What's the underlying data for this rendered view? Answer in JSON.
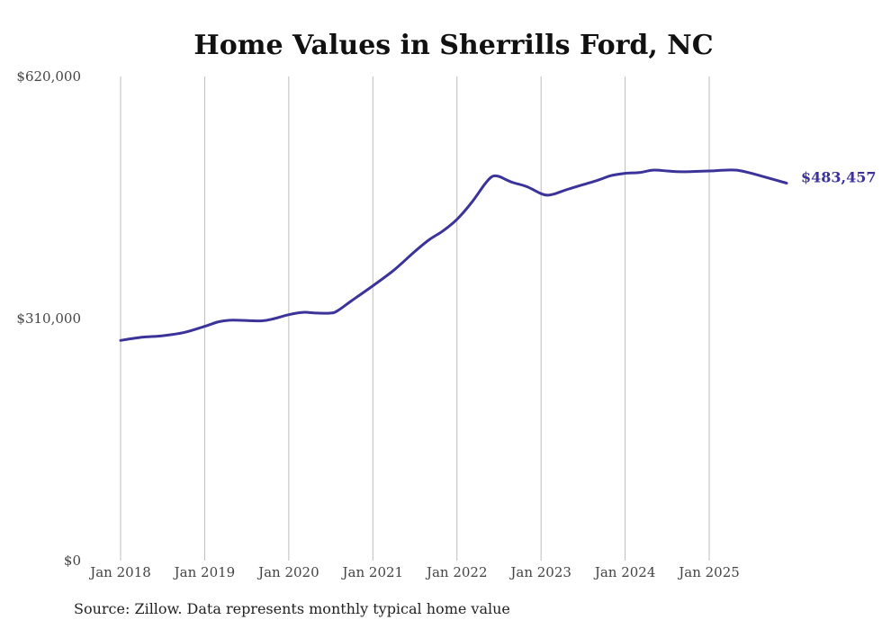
{
  "chart_data": {
    "type": "line",
    "title": "Home Values in Sherrills Ford, NC",
    "source": "Source: Zillow. Data represents monthly typical home value",
    "xlabel": "",
    "ylabel": "",
    "ylim": [
      0,
      620000
    ],
    "y_ticks": [
      0,
      310000,
      620000
    ],
    "y_tick_labels": [
      "$0",
      "$310,000",
      "$620,000"
    ],
    "x_tick_positions": [
      2018.0,
      2019.0,
      2020.0,
      2021.0,
      2022.0,
      2023.0,
      2024.0,
      2025.0
    ],
    "x_tick_labels": [
      "Jan 2018",
      "Jan 2019",
      "Jan 2020",
      "Jan 2021",
      "Jan 2022",
      "Jan 2023",
      "Jan 2024",
      "Jan 2025"
    ],
    "xlim": [
      2018.0,
      2025.92
    ],
    "grid": "vertical",
    "line_color": "#3b3399",
    "end_label": "$483,457",
    "series": [
      {
        "name": "Typical home value",
        "x": [
          2018.0,
          2018.25,
          2018.5,
          2018.75,
          2019.0,
          2019.17,
          2019.33,
          2019.67,
          2019.83,
          2020.0,
          2020.17,
          2020.33,
          2020.5,
          2020.58,
          2020.75,
          2021.0,
          2021.25,
          2021.5,
          2021.67,
          2021.83,
          2022.0,
          2022.17,
          2022.33,
          2022.42,
          2022.5,
          2022.58,
          2022.67,
          2022.83,
          2023.0,
          2023.08,
          2023.17,
          2023.33,
          2023.67,
          2023.83,
          2024.0,
          2024.17,
          2024.33,
          2024.5,
          2024.67,
          2025.0,
          2025.17,
          2025.33,
          2025.5,
          2025.67,
          2025.92
        ],
        "values": [
          282000,
          286000,
          288000,
          292000,
          300000,
          306000,
          308000,
          307000,
          310000,
          315000,
          318000,
          317000,
          317000,
          320000,
          333000,
          352000,
          372000,
          396000,
          411000,
          422000,
          437000,
          458000,
          482000,
          492000,
          492000,
          488000,
          484000,
          479000,
          470000,
          468000,
          470000,
          476000,
          487000,
          493000,
          496000,
          497000,
          500000,
          499000,
          498000,
          499000,
          500000,
          500000,
          496000,
          491000,
          483457
        ]
      }
    ]
  }
}
